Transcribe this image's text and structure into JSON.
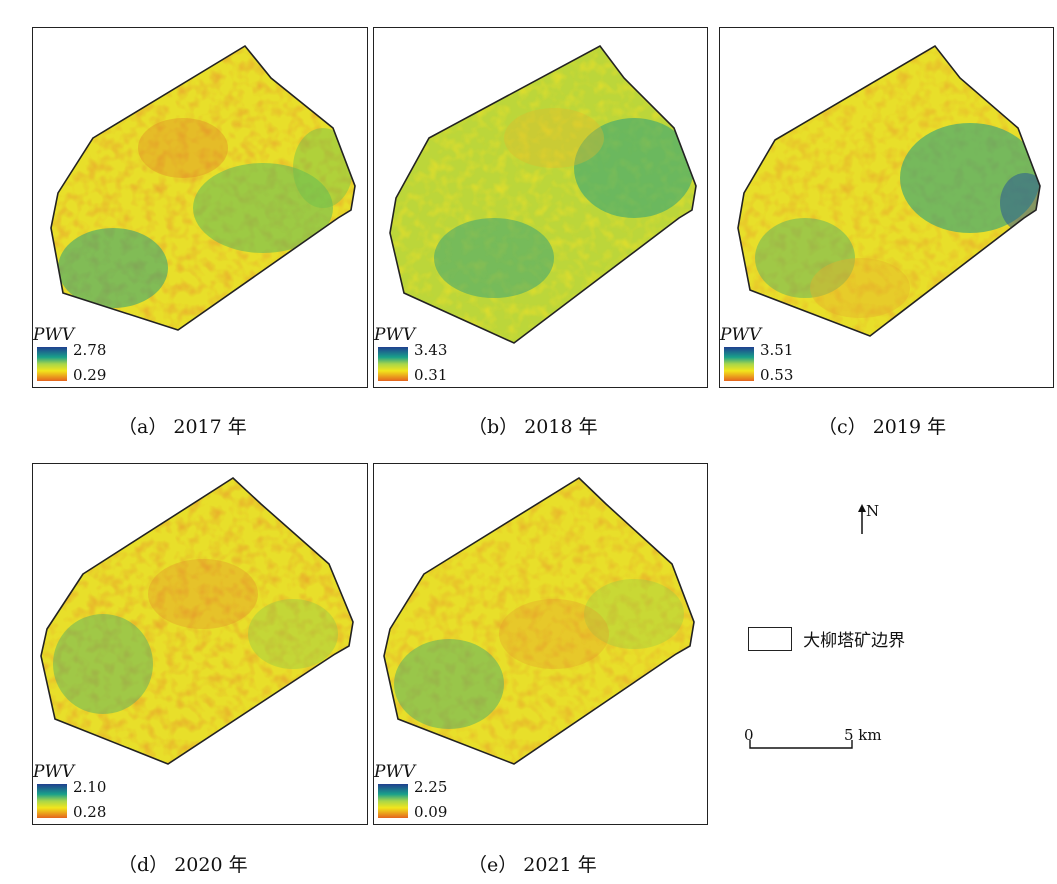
{
  "panels": [
    {
      "id": "a",
      "legend_title": "PWV",
      "max": "2.78",
      "min": "0.29",
      "caption_letter": "（a）",
      "caption_year": "2017 年",
      "dominant": "yellow"
    },
    {
      "id": "b",
      "legend_title": "PWV",
      "max": "3.43",
      "min": "0.31",
      "caption_letter": "（b）",
      "caption_year": "2018 年",
      "dominant": "green"
    },
    {
      "id": "c",
      "legend_title": "PWV",
      "max": "3.51",
      "min": "0.53",
      "caption_letter": "（c）",
      "caption_year": "2019 年",
      "dominant": "mixed"
    },
    {
      "id": "d",
      "legend_title": "PWV",
      "max": "2.10",
      "min": "0.28",
      "caption_letter": "（d）",
      "caption_year": "2020 年",
      "dominant": "yellow"
    },
    {
      "id": "e",
      "legend_title": "PWV",
      "max": "2.25",
      "min": "0.09",
      "caption_letter": "（e）",
      "caption_year": "2021 年",
      "dominant": "yellow"
    }
  ],
  "north_arrow": {
    "label": "N"
  },
  "boundary_legend": {
    "label": "大柳塔矿边界"
  },
  "scale_bar": {
    "start": "0",
    "end": "5 km"
  },
  "colors": {
    "ramp_high": "#1f3f8f",
    "ramp_mid_high": "#1aa08a",
    "ramp_mid": "#a8d64a",
    "ramp_mid_low": "#f2e61c",
    "ramp_low": "#e4641e",
    "boundary": "#222222"
  }
}
